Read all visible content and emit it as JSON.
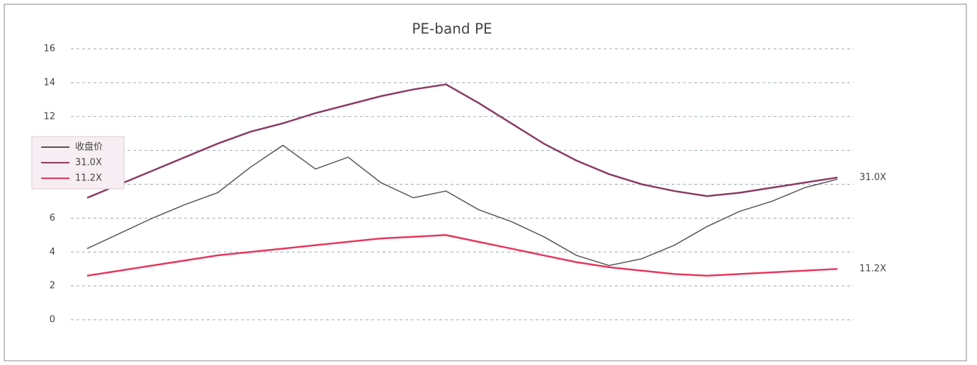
{
  "chart_data": {
    "type": "line",
    "title": "PE-band   PE",
    "categories": [
      null,
      null,
      null,
      null,
      null,
      null,
      null,
      null,
      null,
      null,
      null,
      null,
      null,
      null,
      null,
      null,
      null,
      null,
      null,
      null,
      null,
      null,
      null,
      null
    ],
    "series": [
      {
        "name": "收盘价",
        "color": "#555555",
        "values": [
          4.2,
          5.1,
          6.0,
          6.8,
          7.5,
          9.0,
          10.3,
          8.9,
          9.6,
          8.1,
          7.2,
          7.6,
          6.5,
          5.8,
          4.9,
          3.8,
          3.2,
          3.6,
          4.4,
          5.5,
          6.4,
          7.0,
          7.8,
          8.3
        ]
      },
      {
        "name": "31.0X",
        "color": "#8b3a62",
        "values": [
          7.2,
          8.0,
          8.8,
          9.6,
          10.4,
          11.1,
          11.6,
          12.2,
          12.7,
          13.2,
          13.6,
          13.9,
          12.8,
          11.6,
          10.4,
          9.4,
          8.6,
          8.0,
          7.6,
          7.3,
          7.5,
          7.8,
          8.1,
          8.4
        ]
      },
      {
        "name": "11.2X",
        "color": "#e8365d",
        "values": [
          2.6,
          2.9,
          3.2,
          3.5,
          3.8,
          4.0,
          4.2,
          4.4,
          4.6,
          4.8,
          4.9,
          5.0,
          4.6,
          4.2,
          3.8,
          3.4,
          3.1,
          2.9,
          2.7,
          2.6,
          2.7,
          2.8,
          2.9,
          3.0
        ]
      }
    ],
    "ylim": [
      0,
      16
    ],
    "yticks": [
      0,
      2,
      4,
      6,
      8,
      10,
      12,
      14,
      16
    ],
    "grid": true
  }
}
